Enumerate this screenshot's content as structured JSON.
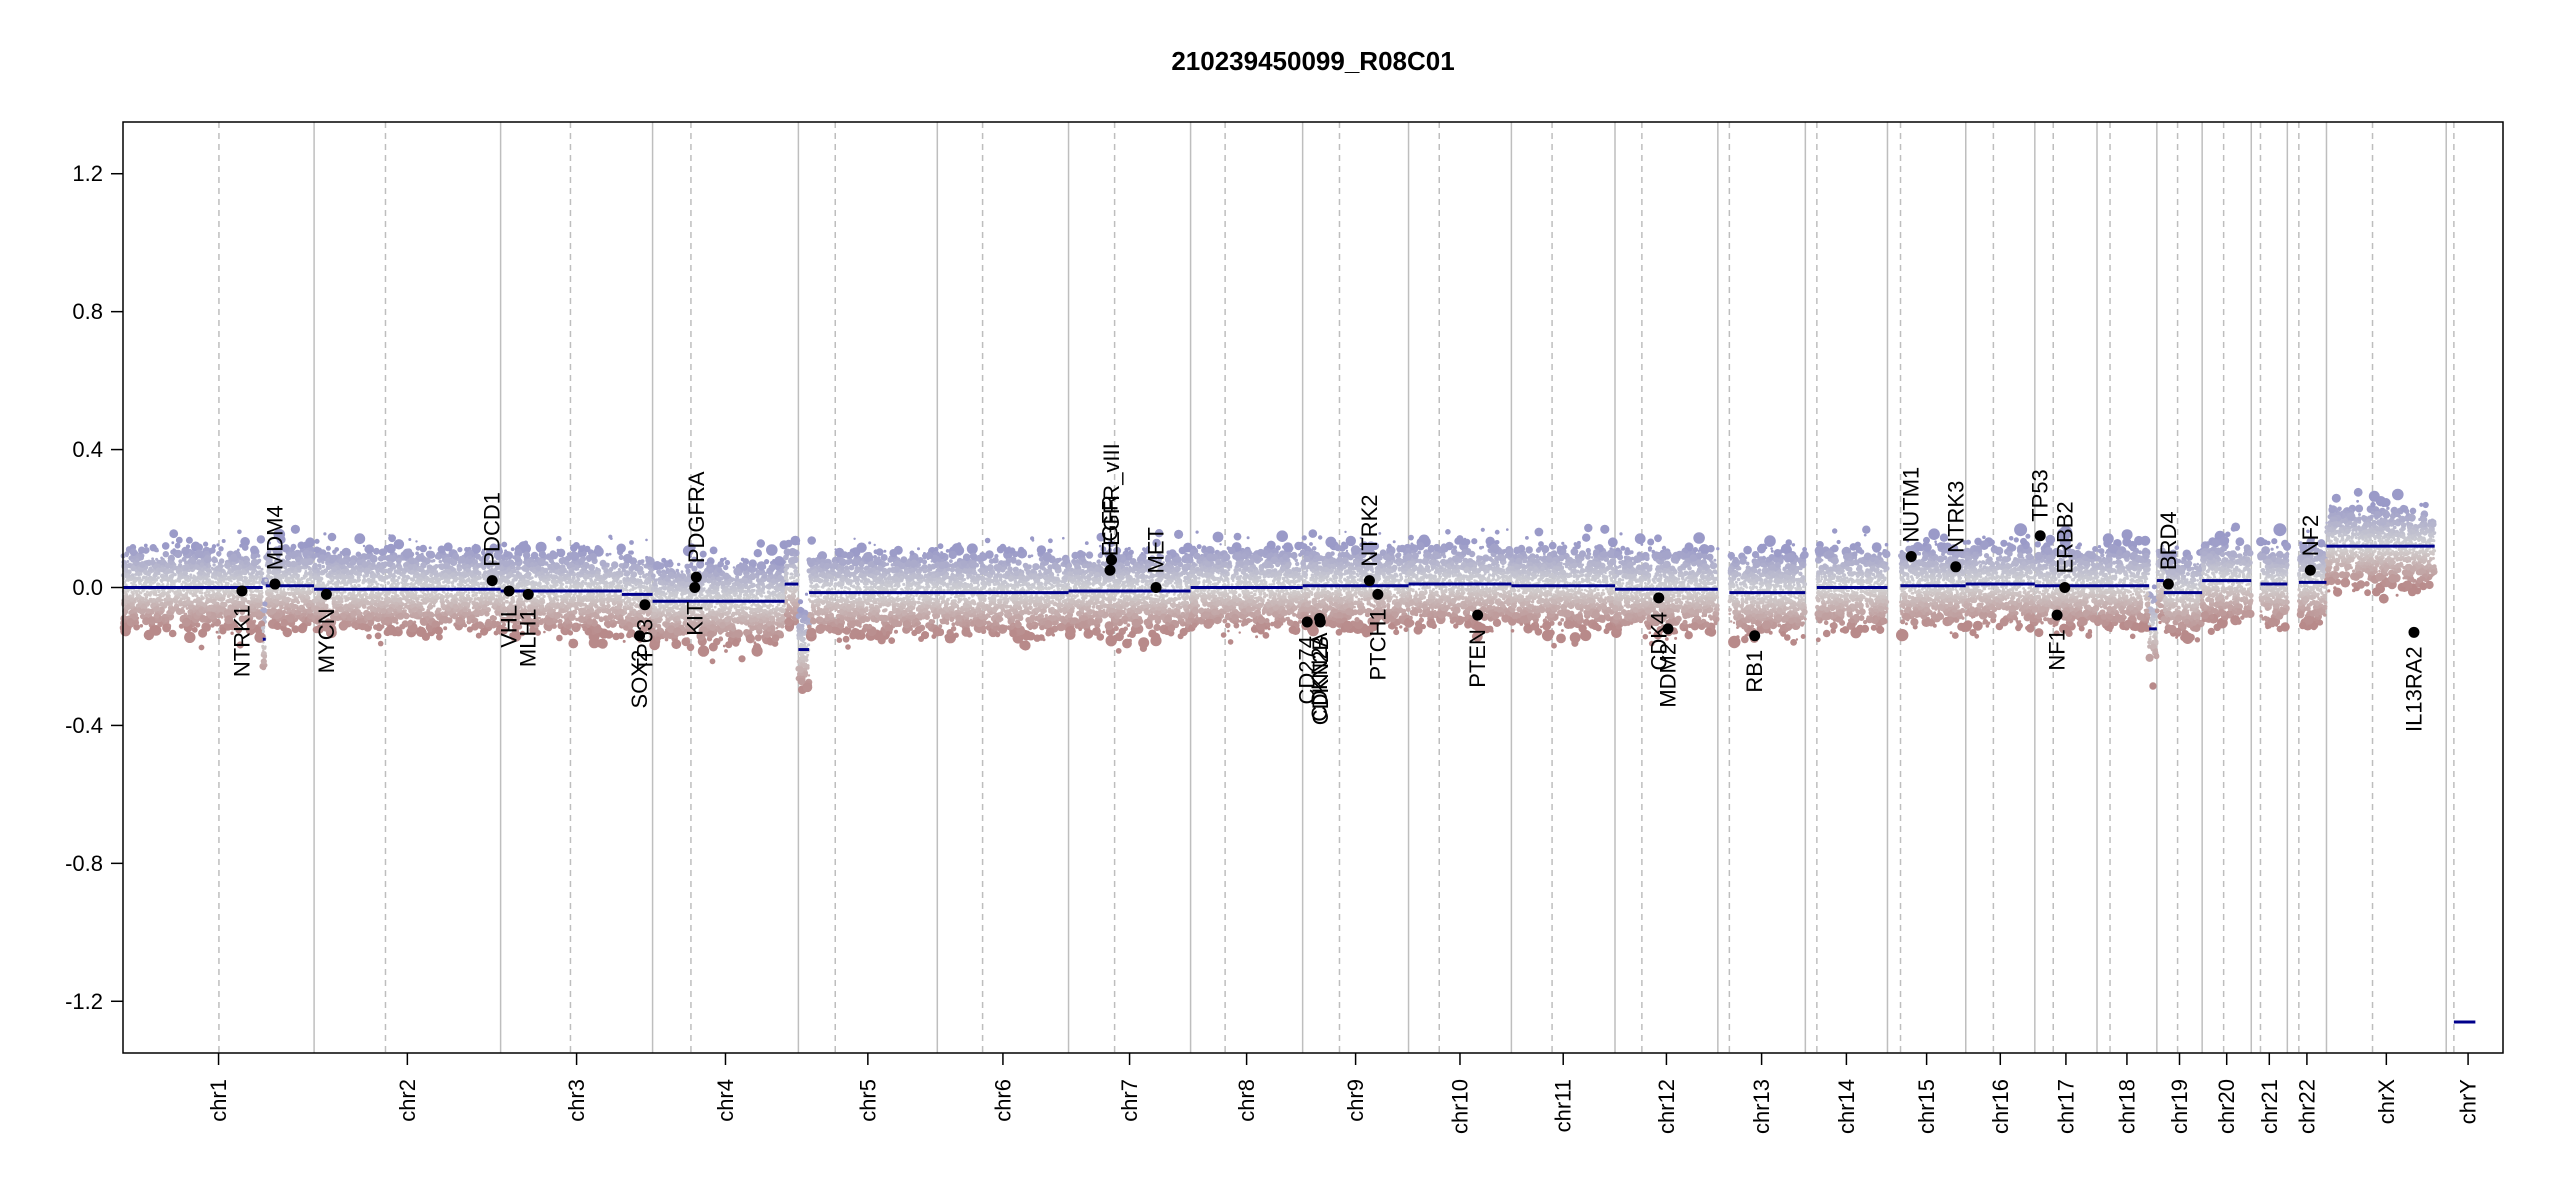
{
  "chart_data": {
    "type": "scatter",
    "title": "210239450099_R08C01",
    "xlabel": "",
    "ylabel": "",
    "ylim": [
      -1.35,
      1.35
    ],
    "yticks": [
      -1.2,
      -0.8,
      -0.4,
      0.0,
      0.4,
      0.8,
      1.2
    ],
    "ytick_labels": [
      "-1.2",
      "-0.8",
      "-0.4",
      "0.0",
      "0.4",
      "0.8",
      "1.2"
    ],
    "x_unit": "genome position (Mb, cumulative)",
    "xlim": [
      0,
      3101
    ],
    "grid": "vertical chromosome boundaries (solid) and centromeres (dashed)",
    "colors": {
      "segment": "#00008b",
      "gain": "#9a9ac8",
      "loss": "#b88a8a",
      "neutral": "#d3d3d3",
      "gene_point": "#000000",
      "boundary": "#bebebe",
      "centromere": "#bebebe"
    },
    "chromosomes": [
      {
        "name": "chr1",
        "start": 0,
        "end": 249,
        "centromere": 125
      },
      {
        "name": "chr2",
        "start": 249,
        "end": 492,
        "centromere": 342
      },
      {
        "name": "chr3",
        "start": 492,
        "end": 690,
        "centromere": 583
      },
      {
        "name": "chr4",
        "start": 690,
        "end": 880,
        "centromere": 740
      },
      {
        "name": "chr5",
        "start": 880,
        "end": 1061,
        "centromere": 928
      },
      {
        "name": "chr6",
        "start": 1061,
        "end": 1232,
        "centromere": 1120
      },
      {
        "name": "chr7",
        "start": 1232,
        "end": 1391,
        "centromere": 1292
      },
      {
        "name": "chr8",
        "start": 1391,
        "end": 1537,
        "centromere": 1436
      },
      {
        "name": "chr9",
        "start": 1537,
        "end": 1675,
        "centromere": 1585
      },
      {
        "name": "chr10",
        "start": 1675,
        "end": 1809,
        "centromere": 1715
      },
      {
        "name": "chr11",
        "start": 1809,
        "end": 1944,
        "centromere": 1862
      },
      {
        "name": "chr12",
        "start": 1944,
        "end": 2078,
        "centromere": 1979
      },
      {
        "name": "chr13",
        "start": 2078,
        "end": 2192,
        "centromere": 2093
      },
      {
        "name": "chr14",
        "start": 2192,
        "end": 2299,
        "centromere": 2207
      },
      {
        "name": "chr15",
        "start": 2299,
        "end": 2401,
        "centromere": 2316
      },
      {
        "name": "chr16",
        "start": 2401,
        "end": 2491,
        "centromere": 2437
      },
      {
        "name": "chr17",
        "start": 2491,
        "end": 2572,
        "centromere": 2515
      },
      {
        "name": "chr18",
        "start": 2572,
        "end": 2650,
        "centromere": 2589
      },
      {
        "name": "chr19",
        "start": 2650,
        "end": 2709,
        "centromere": 2677
      },
      {
        "name": "chr20",
        "start": 2709,
        "end": 2773,
        "centromere": 2737
      },
      {
        "name": "chr21",
        "start": 2773,
        "end": 2820,
        "centromere": 2785
      },
      {
        "name": "chr22",
        "start": 2820,
        "end": 2871,
        "centromere": 2835
      },
      {
        "name": "chrX",
        "start": 2871,
        "end": 3027,
        "centromere": 2931
      },
      {
        "name": "chrY",
        "start": 3027,
        "end": 3084,
        "centromere": 3037
      }
    ],
    "segments": [
      {
        "start": 0,
        "end": 182,
        "value": 0.0
      },
      {
        "start": 182,
        "end": 186,
        "value": -0.15
      },
      {
        "start": 186,
        "end": 249,
        "value": 0.005
      },
      {
        "start": 249,
        "end": 492,
        "value": -0.005
      },
      {
        "start": 492,
        "end": 650,
        "value": -0.01
      },
      {
        "start": 650,
        "end": 690,
        "value": -0.02
      },
      {
        "start": 690,
        "end": 862,
        "value": -0.04
      },
      {
        "start": 862,
        "end": 880,
        "value": 0.01
      },
      {
        "start": 880,
        "end": 894,
        "value": -0.18
      },
      {
        "start": 894,
        "end": 1232,
        "value": -0.015
      },
      {
        "start": 1232,
        "end": 1391,
        "value": -0.01
      },
      {
        "start": 1391,
        "end": 1537,
        "value": 0.0
      },
      {
        "start": 1537,
        "end": 1675,
        "value": 0.005
      },
      {
        "start": 1675,
        "end": 1809,
        "value": 0.01
      },
      {
        "start": 1809,
        "end": 1944,
        "value": 0.005
      },
      {
        "start": 1944,
        "end": 2078,
        "value": -0.005
      },
      {
        "start": 2093,
        "end": 2192,
        "value": -0.015
      },
      {
        "start": 2207,
        "end": 2299,
        "value": 0.0
      },
      {
        "start": 2316,
        "end": 2401,
        "value": 0.005
      },
      {
        "start": 2401,
        "end": 2491,
        "value": 0.01
      },
      {
        "start": 2491,
        "end": 2572,
        "value": 0.005
      },
      {
        "start": 2572,
        "end": 2640,
        "value": 0.005
      },
      {
        "start": 2640,
        "end": 2650,
        "value": -0.12
      },
      {
        "start": 2650,
        "end": 2659,
        "value": 0.02
      },
      {
        "start": 2659,
        "end": 2709,
        "value": -0.015
      },
      {
        "start": 2709,
        "end": 2773,
        "value": 0.02
      },
      {
        "start": 2785,
        "end": 2820,
        "value": 0.01
      },
      {
        "start": 2835,
        "end": 2871,
        "value": 0.015
      },
      {
        "start": 2871,
        "end": 3012,
        "value": 0.12
      },
      {
        "start": 3037,
        "end": 3065,
        "value": -1.26
      }
    ],
    "genes": [
      {
        "name": "NTRK1",
        "x": 155,
        "y": -0.01,
        "label_side": "below"
      },
      {
        "name": "MDM4",
        "x": 198,
        "y": 0.01,
        "label_side": "above"
      },
      {
        "name": "MYCN",
        "x": 265,
        "y": -0.02,
        "label_side": "below"
      },
      {
        "name": "PDCD1",
        "x": 481,
        "y": 0.02,
        "label_side": "above"
      },
      {
        "name": "VHL",
        "x": 503,
        "y": -0.01,
        "label_side": "below"
      },
      {
        "name": "MLH1",
        "x": 528,
        "y": -0.02,
        "label_side": "below"
      },
      {
        "name": "SOX2",
        "x": 673,
        "y": -0.14,
        "label_side": "below"
      },
      {
        "name": "TP63",
        "x": 680,
        "y": -0.05,
        "label_side": "below"
      },
      {
        "name": "KIT",
        "x": 745,
        "y": 0.0,
        "label_side": "below"
      },
      {
        "name": "PDGFRA",
        "x": 747,
        "y": 0.03,
        "label_side": "above"
      },
      {
        "name": "EGFR",
        "x": 1286,
        "y": 0.05,
        "label_side": "above"
      },
      {
        "name": "EGFR_vIII",
        "x": 1288,
        "y": 0.08,
        "label_side": "above"
      },
      {
        "name": "MET",
        "x": 1346,
        "y": 0.0,
        "label_side": "above"
      },
      {
        "name": "CD274",
        "x": 1543,
        "y": -0.1,
        "label_side": "below"
      },
      {
        "name": "CDKN2A",
        "x": 1559,
        "y": -0.09,
        "label_side": "below"
      },
      {
        "name": "CDKN2B",
        "x": 1560,
        "y": -0.1,
        "label_side": "below"
      },
      {
        "name": "PTCH1",
        "x": 1635,
        "y": -0.02,
        "label_side": "below"
      },
      {
        "name": "NTRK2",
        "x": 1624,
        "y": 0.02,
        "label_side": "above"
      },
      {
        "name": "PTEN",
        "x": 1765,
        "y": -0.08,
        "label_side": "below"
      },
      {
        "name": "CDK4",
        "x": 2001,
        "y": -0.03,
        "label_side": "below"
      },
      {
        "name": "MDM2",
        "x": 2013,
        "y": -0.12,
        "label_side": "below"
      },
      {
        "name": "RB1",
        "x": 2126,
        "y": -0.14,
        "label_side": "below"
      },
      {
        "name": "NUTM1",
        "x": 2330,
        "y": 0.09,
        "label_side": "above"
      },
      {
        "name": "NTRK3",
        "x": 2388,
        "y": 0.06,
        "label_side": "above"
      },
      {
        "name": "TP53",
        "x": 2498,
        "y": 0.15,
        "label_side": "above"
      },
      {
        "name": "ERBB2",
        "x": 2530,
        "y": 0.0,
        "label_side": "above"
      },
      {
        "name": "NF1",
        "x": 2520,
        "y": -0.08,
        "label_side": "below"
      },
      {
        "name": "BRD4",
        "x": 2665,
        "y": 0.01,
        "label_side": "above"
      },
      {
        "name": "NF2",
        "x": 2850,
        "y": 0.05,
        "label_side": "above"
      },
      {
        "name": "IL13RA2",
        "x": 2985,
        "y": -0.13,
        "label_side": "below"
      }
    ]
  }
}
